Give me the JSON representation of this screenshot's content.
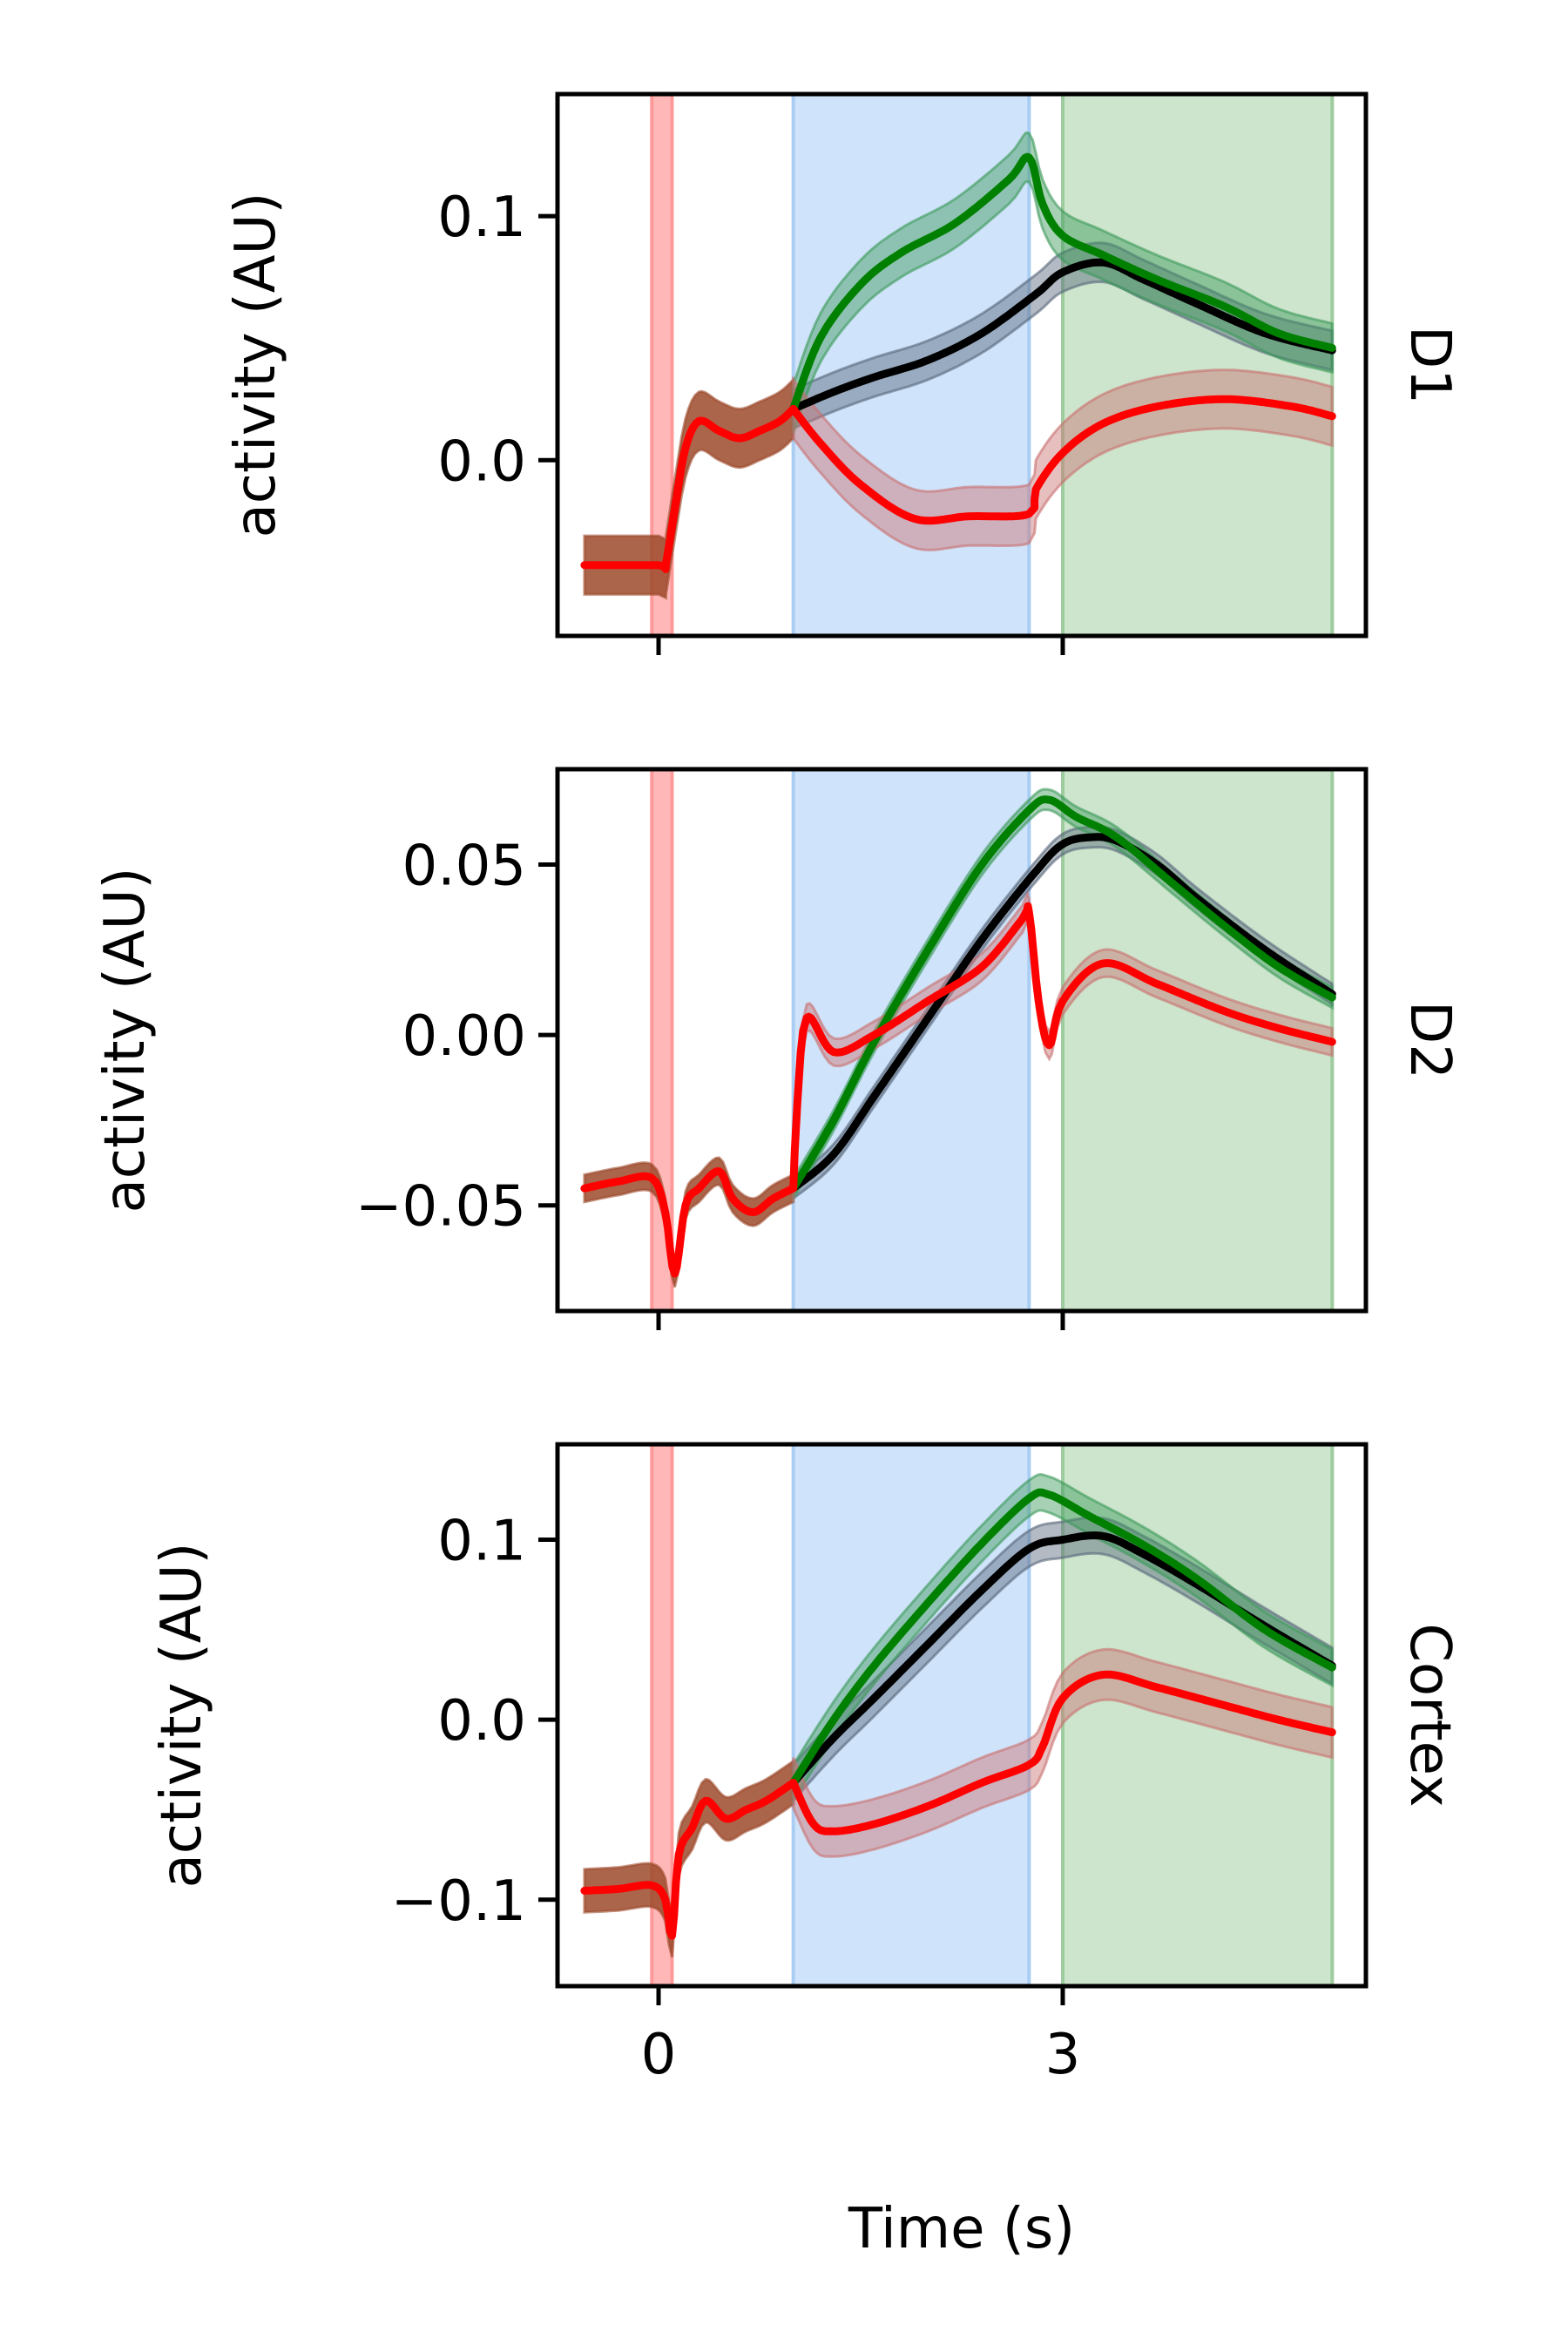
{
  "figure": {
    "xlabel": "Time (s)",
    "ylabel": "activity (AU)",
    "colors": {
      "black_series": "#000000",
      "green_series": "#008000",
      "red_series": "#ff0000",
      "red_band": "#ff9999",
      "blue_shade": "#cfe4fa",
      "blue_edge": "#a9cdf3",
      "green_shade": "#cde5cc",
      "green_edge": "#9fcc9e",
      "sem_black": "#56657a",
      "sem_green": "#3c9a5a",
      "sem_red": "#c97070",
      "sem_baseline": "#9c4a2c"
    }
  },
  "chart_data": [
    {
      "type": "line",
      "panel": "D1",
      "xlabel": "",
      "ylabel": "activity (AU)",
      "xlim": [
        -0.75,
        5.25
      ],
      "ylim": [
        -0.072,
        0.15
      ],
      "xticks": [
        0,
        3
      ],
      "xtick_labels": [
        "",
        ""
      ],
      "yticks": [
        0.0,
        0.1
      ],
      "ytick_labels": [
        "0.0",
        "0.1"
      ],
      "shaded_regions": [
        {
          "x": [
            -0.05,
            0.1
          ],
          "color": "red"
        },
        {
          "x": [
            1.0,
            2.75
          ],
          "color": "blue"
        },
        {
          "x": [
            3.0,
            5.0
          ],
          "color": "green"
        }
      ],
      "common_x": [
        -0.55,
        0.0,
        0.05,
        0.12,
        0.2,
        0.3,
        0.45,
        0.6,
        0.75,
        0.9,
        1.0
      ],
      "common_y": [
        -0.043,
        -0.043,
        -0.043,
        -0.02,
        0.005,
        0.016,
        0.012,
        0.009,
        0.012,
        0.016,
        0.021
      ],
      "common_err": 0.012,
      "series": [
        {
          "x": [
            1.0,
            1.3,
            1.6,
            2.0,
            2.4,
            2.8,
            3.0,
            3.3,
            3.6,
            4.0,
            4.5,
            5.0
          ],
          "y": [
            0.021,
            0.028,
            0.034,
            0.041,
            0.052,
            0.068,
            0.077,
            0.081,
            0.074,
            0.064,
            0.052,
            0.045
          ],
          "err": 0.008,
          "color": "black"
        },
        {
          "x": [
            1.0,
            1.2,
            1.5,
            1.8,
            2.2,
            2.6,
            2.75,
            2.85,
            3.0,
            3.3,
            3.7,
            4.2,
            4.6,
            5.0
          ],
          "y": [
            0.021,
            0.05,
            0.072,
            0.085,
            0.097,
            0.115,
            0.124,
            0.105,
            0.092,
            0.084,
            0.074,
            0.063,
            0.052,
            0.046
          ],
          "err": 0.01,
          "color": "green"
        },
        {
          "x": [
            1.0,
            1.2,
            1.5,
            1.9,
            2.3,
            2.75,
            2.8,
            3.0,
            3.3,
            3.7,
            4.2,
            4.7,
            5.0
          ],
          "y": [
            0.021,
            0.007,
            -0.01,
            -0.024,
            -0.023,
            -0.022,
            -0.012,
            0.003,
            0.015,
            0.022,
            0.025,
            0.022,
            0.018
          ],
          "err": 0.012,
          "color": "red"
        }
      ]
    },
    {
      "type": "line",
      "panel": "D2",
      "xlabel": "",
      "ylabel": "activity (AU)",
      "xlim": [
        -0.75,
        5.25
      ],
      "ylim": [
        -0.081,
        0.078
      ],
      "xticks": [
        0,
        3
      ],
      "xtick_labels": [
        "",
        ""
      ],
      "yticks": [
        -0.05,
        0.0,
        0.05
      ],
      "ytick_labels": [
        "−0.05",
        "0.00",
        "0.05"
      ],
      "shaded_regions": [
        {
          "x": [
            -0.05,
            0.1
          ],
          "color": "red"
        },
        {
          "x": [
            1.0,
            2.75
          ],
          "color": "blue"
        },
        {
          "x": [
            3.0,
            5.0
          ],
          "color": "green"
        }
      ],
      "common_x": [
        -0.55,
        -0.3,
        -0.05,
        0.05,
        0.12,
        0.2,
        0.3,
        0.45,
        0.55,
        0.7,
        0.85,
        1.0
      ],
      "common_y": [
        -0.045,
        -0.043,
        -0.042,
        -0.052,
        -0.07,
        -0.05,
        -0.045,
        -0.04,
        -0.048,
        -0.052,
        -0.048,
        -0.045
      ],
      "common_err": 0.004,
      "series": [
        {
          "x": [
            1.0,
            1.3,
            1.6,
            2.0,
            2.4,
            2.8,
            3.0,
            3.2,
            3.4,
            3.7,
            4.0,
            4.5,
            5.0
          ],
          "y": [
            -0.045,
            -0.035,
            -0.018,
            0.005,
            0.028,
            0.048,
            0.056,
            0.058,
            0.057,
            0.05,
            0.04,
            0.025,
            0.012
          ],
          "err": 0.003,
          "color": "black"
        },
        {
          "x": [
            1.0,
            1.3,
            1.6,
            2.0,
            2.4,
            2.75,
            2.9,
            3.1,
            3.4,
            3.8,
            4.2,
            4.6,
            5.0
          ],
          "y": [
            -0.045,
            -0.025,
            -0.002,
            0.025,
            0.05,
            0.066,
            0.069,
            0.064,
            0.058,
            0.045,
            0.032,
            0.02,
            0.011
          ],
          "err": 0.003,
          "color": "green"
        },
        {
          "x": [
            1.0,
            1.03,
            1.1,
            1.3,
            1.6,
            2.0,
            2.4,
            2.7,
            2.75,
            2.82,
            2.9,
            3.0,
            3.3,
            3.7,
            4.2,
            4.6,
            5.0
          ],
          "y": [
            -0.045,
            -0.02,
            0.005,
            -0.005,
            0.0,
            0.01,
            0.02,
            0.034,
            0.036,
            0.01,
            -0.003,
            0.01,
            0.021,
            0.015,
            0.007,
            0.002,
            -0.002
          ],
          "err": 0.004,
          "color": "red"
        }
      ]
    },
    {
      "type": "line",
      "panel": "Cortex",
      "xlabel": "Time (s)",
      "ylabel": "activity (AU)",
      "xlim": [
        -0.75,
        5.25
      ],
      "ylim": [
        -0.148,
        0.153
      ],
      "xticks": [
        0,
        3
      ],
      "xtick_labels": [
        "0",
        "3"
      ],
      "yticks": [
        -0.1,
        0.0,
        0.1
      ],
      "ytick_labels": [
        "−0.1",
        "0.0",
        "0.1"
      ],
      "shaded_regions": [
        {
          "x": [
            -0.05,
            0.1
          ],
          "color": "red"
        },
        {
          "x": [
            1.0,
            2.75
          ],
          "color": "blue"
        },
        {
          "x": [
            3.0,
            5.0
          ],
          "color": "green"
        }
      ],
      "common_x": [
        -0.55,
        -0.3,
        -0.05,
        0.05,
        0.1,
        0.15,
        0.25,
        0.35,
        0.5,
        0.65,
        0.8,
        1.0
      ],
      "common_y": [
        -0.095,
        -0.094,
        -0.092,
        -0.1,
        -0.12,
        -0.075,
        -0.06,
        -0.045,
        -0.055,
        -0.05,
        -0.045,
        -0.035
      ],
      "common_err": 0.012,
      "series": [
        {
          "x": [
            1.0,
            1.3,
            1.6,
            2.0,
            2.4,
            2.75,
            3.0,
            3.3,
            3.6,
            4.0,
            4.5,
            5.0
          ],
          "y": [
            -0.035,
            -0.01,
            0.012,
            0.042,
            0.072,
            0.095,
            0.1,
            0.102,
            0.092,
            0.075,
            0.052,
            0.03
          ],
          "err": 0.01,
          "color": "black"
        },
        {
          "x": [
            1.0,
            1.3,
            1.6,
            2.0,
            2.4,
            2.75,
            2.9,
            3.2,
            3.6,
            4.0,
            4.5,
            5.0
          ],
          "y": [
            -0.035,
            0.0,
            0.03,
            0.065,
            0.098,
            0.123,
            0.125,
            0.113,
            0.097,
            0.078,
            0.05,
            0.029
          ],
          "err": 0.01,
          "color": "green"
        },
        {
          "x": [
            1.0,
            1.15,
            1.3,
            1.6,
            2.0,
            2.4,
            2.75,
            2.85,
            3.0,
            3.3,
            3.7,
            4.2,
            4.6,
            5.0
          ],
          "y": [
            -0.035,
            -0.058,
            -0.062,
            -0.058,
            -0.048,
            -0.035,
            -0.025,
            -0.015,
            0.012,
            0.025,
            0.018,
            0.008,
            0.0,
            -0.007
          ],
          "err": 0.014,
          "color": "red"
        }
      ]
    }
  ]
}
